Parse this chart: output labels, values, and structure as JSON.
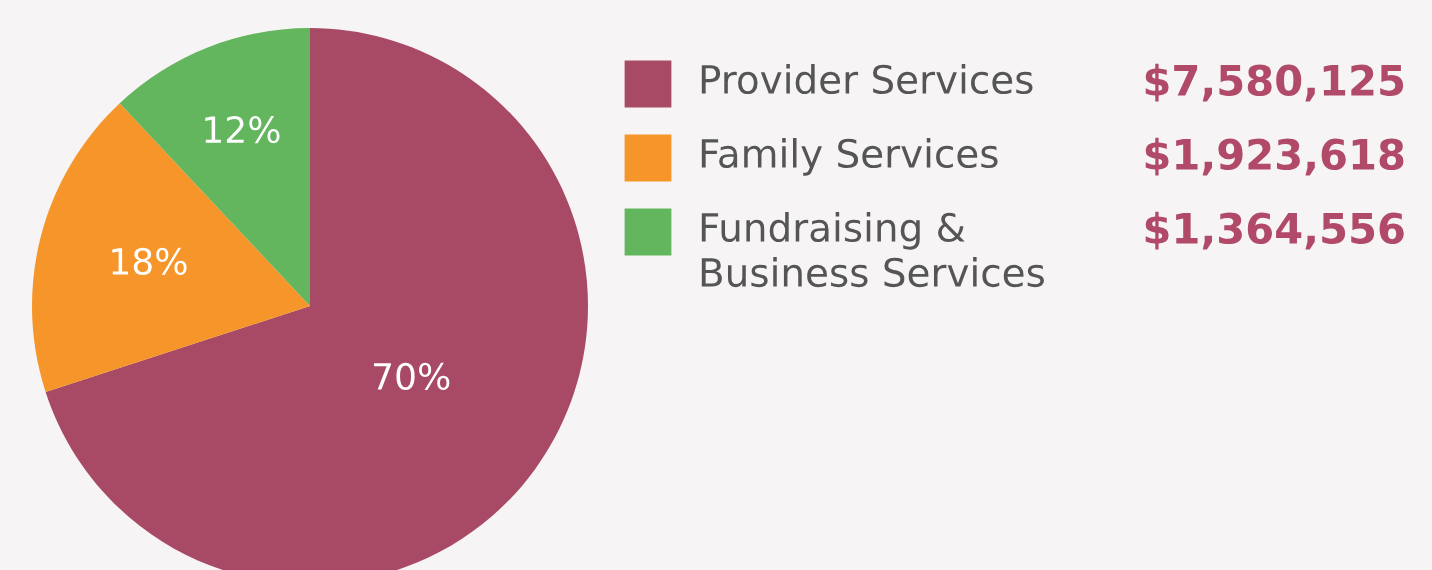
{
  "chart_data": {
    "type": "pie",
    "categories": [
      "Provider Services",
      "Family Services",
      "Fundraising &\nBusiness Services"
    ],
    "values": [
      70,
      18,
      12
    ],
    "colors": [
      "#a84a65",
      "#f5952a",
      "#63b65e"
    ],
    "value_labels": [
      "70%",
      "18%",
      "12%"
    ],
    "annotations": [
      "$7,580,125",
      "$1,923,618",
      "$1,364,556"
    ],
    "legend": "top right"
  }
}
